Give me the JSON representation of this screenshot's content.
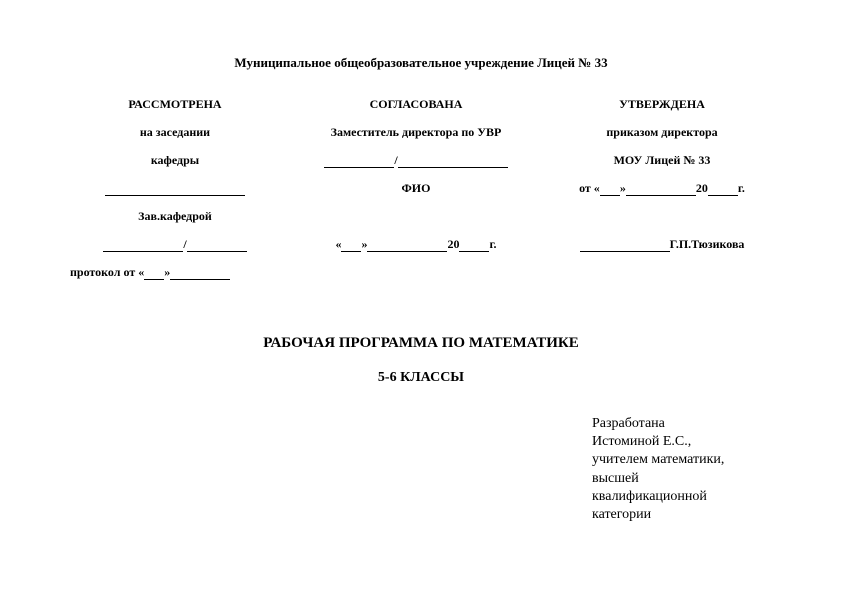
{
  "header": {
    "org": "Муниципальное общеобразовательное учреждение Лицей № 33"
  },
  "left": {
    "title": "РАССМОТРЕНА",
    "line1": "на заседании",
    "line2": "кафедры",
    "head_label": "Зав.кафедрой",
    "protocol_prefix": "протокол от «",
    "protocol_mid": "»"
  },
  "center": {
    "title": "СОГЛАСОВАНА",
    "line1": "Заместитель директора по УВР",
    "fio_label": "ФИО",
    "date_prefix": "«",
    "date_mid": "»",
    "date_year_prefix": " 20",
    "date_year_suffix": "г."
  },
  "right": {
    "title": "УТВЕРЖДЕНА",
    "line1": "приказом директора",
    "line2": "МОУ Лицей № 33",
    "date_prefix": "от «",
    "date_mid": "»",
    "date_year_prefix": " 20",
    "date_year_suffix": "г.",
    "signer": " Г.П.Тюзикова"
  },
  "main": {
    "title": "РАБОЧАЯ ПРОГРАММА ПО МАТЕМАТИКЕ",
    "subtitle": "5-6 КЛАССЫ"
  },
  "developed": {
    "l1": "Разработана",
    "l2": "Истоминой Е.С.,",
    "l3": "учителем математики,",
    "l4": "высшей",
    "l5": "квалификационной",
    "l6": "категории"
  }
}
